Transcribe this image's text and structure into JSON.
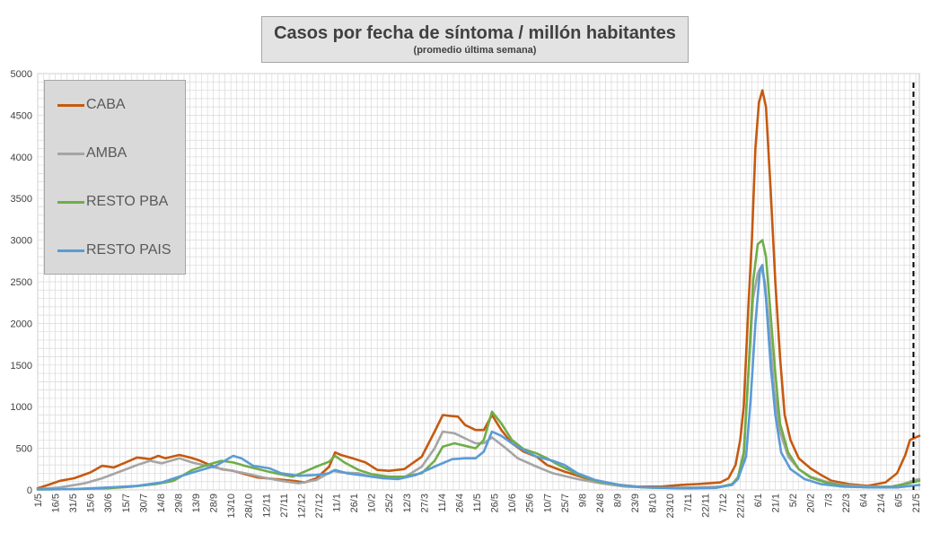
{
  "chart_data": {
    "type": "line",
    "title": "Casos por fecha de síntoma / millón habitantes",
    "subtitle": "(promedio última semana)",
    "xlabel": "",
    "ylabel": "",
    "ylim": [
      0,
      5000
    ],
    "yticks": [
      0,
      500,
      1000,
      1500,
      2000,
      2500,
      3000,
      3500,
      4000,
      4500,
      5000
    ],
    "x_start": "2020-05-01",
    "x_end": "2022-05-24",
    "xtick_labels": [
      "1/5",
      "16/5",
      "31/5",
      "15/6",
      "30/6",
      "15/7",
      "30/7",
      "14/8",
      "29/8",
      "13/9",
      "28/9",
      "13/10",
      "28/10",
      "12/11",
      "27/11",
      "12/12",
      "27/12",
      "11/1",
      "26/1",
      "10/2",
      "25/2",
      "12/3",
      "27/3",
      "11/4",
      "26/4",
      "11/5",
      "26/5",
      "10/6",
      "25/6",
      "10/7",
      "25/7",
      "9/8",
      "24/8",
      "8/9",
      "23/9",
      "8/10",
      "23/10",
      "7/11",
      "22/11",
      "7/12",
      "22/12",
      "6/1",
      "21/1",
      "5/2",
      "20/2",
      "7/3",
      "22/3",
      "6/4",
      "21/4",
      "6/5",
      "21/5"
    ],
    "grid": true,
    "legend_position": "top-left",
    "marker_line_date": "2022-05-19",
    "series": [
      {
        "name": "CABA",
        "color": "#c55a11",
        "points": [
          [
            "2020-05-01",
            20
          ],
          [
            "2020-05-10",
            60
          ],
          [
            "2020-05-20",
            110
          ],
          [
            "2020-06-01",
            140
          ],
          [
            "2020-06-15",
            210
          ],
          [
            "2020-06-25",
            290
          ],
          [
            "2020-07-05",
            270
          ],
          [
            "2020-07-15",
            330
          ],
          [
            "2020-07-25",
            390
          ],
          [
            "2020-08-05",
            370
          ],
          [
            "2020-08-12",
            410
          ],
          [
            "2020-08-18",
            380
          ],
          [
            "2020-08-30",
            420
          ],
          [
            "2020-09-08",
            390
          ],
          [
            "2020-09-15",
            360
          ],
          [
            "2020-09-25",
            300
          ],
          [
            "2020-10-05",
            250
          ],
          [
            "2020-10-15",
            230
          ],
          [
            "2020-10-25",
            190
          ],
          [
            "2020-11-05",
            150
          ],
          [
            "2020-11-20",
            130
          ],
          [
            "2020-12-05",
            110
          ],
          [
            "2020-12-15",
            90
          ],
          [
            "2020-12-25",
            140
          ],
          [
            "2021-01-05",
            280
          ],
          [
            "2021-01-10",
            450
          ],
          [
            "2021-01-15",
            420
          ],
          [
            "2021-01-25",
            380
          ],
          [
            "2021-02-05",
            330
          ],
          [
            "2021-02-15",
            240
          ],
          [
            "2021-02-25",
            230
          ],
          [
            "2021-03-10",
            250
          ],
          [
            "2021-03-25",
            400
          ],
          [
            "2021-04-05",
            700
          ],
          [
            "2021-04-12",
            900
          ],
          [
            "2021-04-18",
            890
          ],
          [
            "2021-04-25",
            880
          ],
          [
            "2021-05-01",
            780
          ],
          [
            "2021-05-10",
            720
          ],
          [
            "2021-05-17",
            720
          ],
          [
            "2021-05-24",
            900
          ],
          [
            "2021-06-01",
            720
          ],
          [
            "2021-06-10",
            560
          ],
          [
            "2021-06-20",
            460
          ],
          [
            "2021-07-01",
            400
          ],
          [
            "2021-07-10",
            300
          ],
          [
            "2021-07-25",
            220
          ],
          [
            "2021-08-10",
            150
          ],
          [
            "2021-08-25",
            90
          ],
          [
            "2021-09-10",
            60
          ],
          [
            "2021-09-25",
            40
          ],
          [
            "2021-10-15",
            40
          ],
          [
            "2021-11-01",
            60
          ],
          [
            "2021-11-15",
            70
          ],
          [
            "2021-11-25",
            80
          ],
          [
            "2021-12-05",
            90
          ],
          [
            "2021-12-12",
            140
          ],
          [
            "2021-12-18",
            300
          ],
          [
            "2021-12-22",
            600
          ],
          [
            "2021-12-25",
            1000
          ],
          [
            "2021-12-29",
            2200
          ],
          [
            "2022-01-01",
            3000
          ],
          [
            "2022-01-04",
            4100
          ],
          [
            "2022-01-07",
            4650
          ],
          [
            "2022-01-10",
            4800
          ],
          [
            "2022-01-13",
            4600
          ],
          [
            "2022-01-17",
            3600
          ],
          [
            "2022-01-21",
            2500
          ],
          [
            "2022-01-25",
            1600
          ],
          [
            "2022-01-29",
            900
          ],
          [
            "2022-02-03",
            600
          ],
          [
            "2022-02-10",
            380
          ],
          [
            "2022-02-20",
            260
          ],
          [
            "2022-03-01",
            180
          ],
          [
            "2022-03-10",
            110
          ],
          [
            "2022-03-25",
            70
          ],
          [
            "2022-04-10",
            50
          ],
          [
            "2022-04-25",
            90
          ],
          [
            "2022-05-05",
            200
          ],
          [
            "2022-05-12",
            420
          ],
          [
            "2022-05-16",
            600
          ],
          [
            "2022-05-24",
            650
          ]
        ]
      },
      {
        "name": "AMBA",
        "color": "#a5a5a5",
        "points": [
          [
            "2020-05-01",
            10
          ],
          [
            "2020-05-20",
            30
          ],
          [
            "2020-06-10",
            80
          ],
          [
            "2020-06-25",
            140
          ],
          [
            "2020-07-10",
            220
          ],
          [
            "2020-07-25",
            300
          ],
          [
            "2020-08-05",
            350
          ],
          [
            "2020-08-15",
            320
          ],
          [
            "2020-08-30",
            380
          ],
          [
            "2020-09-10",
            330
          ],
          [
            "2020-09-25",
            280
          ],
          [
            "2020-10-10",
            240
          ],
          [
            "2020-10-25",
            200
          ],
          [
            "2020-11-10",
            150
          ],
          [
            "2020-11-25",
            110
          ],
          [
            "2020-12-10",
            80
          ],
          [
            "2020-12-25",
            120
          ],
          [
            "2021-01-08",
            230
          ],
          [
            "2021-01-15",
            210
          ],
          [
            "2021-01-30",
            200
          ],
          [
            "2021-02-10",
            160
          ],
          [
            "2021-02-25",
            140
          ],
          [
            "2021-03-10",
            150
          ],
          [
            "2021-03-25",
            280
          ],
          [
            "2021-04-05",
            500
          ],
          [
            "2021-04-12",
            700
          ],
          [
            "2021-04-22",
            680
          ],
          [
            "2021-05-01",
            620
          ],
          [
            "2021-05-10",
            560
          ],
          [
            "2021-05-17",
            560
          ],
          [
            "2021-05-24",
            630
          ],
          [
            "2021-06-05",
            500
          ],
          [
            "2021-06-15",
            380
          ],
          [
            "2021-07-01",
            280
          ],
          [
            "2021-07-15",
            200
          ],
          [
            "2021-08-05",
            130
          ],
          [
            "2021-08-25",
            80
          ],
          [
            "2021-09-15",
            40
          ],
          [
            "2021-10-15",
            25
          ],
          [
            "2021-11-15",
            30
          ],
          [
            "2021-12-05",
            40
          ],
          [
            "2021-12-15",
            60
          ],
          [
            "2021-12-20",
            150
          ],
          [
            "2021-12-25",
            400
          ],
          [
            "2021-12-29",
            1400
          ],
          [
            "2022-01-02",
            2300
          ],
          [
            "2022-01-06",
            2600
          ],
          [
            "2022-01-09",
            2680
          ],
          [
            "2022-01-12",
            2500
          ],
          [
            "2022-01-16",
            1900
          ],
          [
            "2022-01-20",
            1200
          ],
          [
            "2022-01-25",
            700
          ],
          [
            "2022-02-01",
            400
          ],
          [
            "2022-02-10",
            250
          ],
          [
            "2022-02-20",
            160
          ],
          [
            "2022-03-05",
            100
          ],
          [
            "2022-03-20",
            60
          ],
          [
            "2022-04-10",
            40
          ],
          [
            "2022-04-30",
            40
          ],
          [
            "2022-05-10",
            70
          ],
          [
            "2022-05-18",
            110
          ],
          [
            "2022-05-24",
            130
          ]
        ]
      },
      {
        "name": "RESTO PBA",
        "color": "#70ad47",
        "points": [
          [
            "2020-05-01",
            5
          ],
          [
            "2020-06-01",
            10
          ],
          [
            "2020-07-01",
            20
          ],
          [
            "2020-07-20",
            40
          ],
          [
            "2020-08-10",
            70
          ],
          [
            "2020-08-25",
            110
          ],
          [
            "2020-09-10",
            240
          ],
          [
            "2020-09-25",
            310
          ],
          [
            "2020-10-05",
            350
          ],
          [
            "2020-10-15",
            330
          ],
          [
            "2020-10-25",
            290
          ],
          [
            "2020-11-05",
            250
          ],
          [
            "2020-11-20",
            200
          ],
          [
            "2020-12-05",
            160
          ],
          [
            "2020-12-15",
            220
          ],
          [
            "2020-12-25",
            280
          ],
          [
            "2021-01-05",
            340
          ],
          [
            "2021-01-10",
            410
          ],
          [
            "2021-01-18",
            330
          ],
          [
            "2021-01-30",
            240
          ],
          [
            "2021-02-10",
            190
          ],
          [
            "2021-02-25",
            160
          ],
          [
            "2021-03-10",
            160
          ],
          [
            "2021-03-25",
            200
          ],
          [
            "2021-04-05",
            350
          ],
          [
            "2021-04-12",
            520
          ],
          [
            "2021-04-22",
            560
          ],
          [
            "2021-05-01",
            530
          ],
          [
            "2021-05-10",
            500
          ],
          [
            "2021-05-17",
            600
          ],
          [
            "2021-05-24",
            940
          ],
          [
            "2021-06-01",
            800
          ],
          [
            "2021-06-10",
            600
          ],
          [
            "2021-06-20",
            490
          ],
          [
            "2021-07-01",
            440
          ],
          [
            "2021-07-10",
            380
          ],
          [
            "2021-07-20",
            300
          ],
          [
            "2021-08-05",
            190
          ],
          [
            "2021-08-20",
            110
          ],
          [
            "2021-09-10",
            60
          ],
          [
            "2021-10-01",
            30
          ],
          [
            "2021-11-01",
            20
          ],
          [
            "2021-12-01",
            25
          ],
          [
            "2021-12-15",
            70
          ],
          [
            "2021-12-20",
            150
          ],
          [
            "2021-12-25",
            450
          ],
          [
            "2021-12-29",
            1400
          ],
          [
            "2022-01-02",
            2500
          ],
          [
            "2022-01-06",
            2950
          ],
          [
            "2022-01-10",
            3000
          ],
          [
            "2022-01-13",
            2800
          ],
          [
            "2022-01-17",
            2100
          ],
          [
            "2022-01-21",
            1400
          ],
          [
            "2022-01-25",
            800
          ],
          [
            "2022-02-01",
            450
          ],
          [
            "2022-02-10",
            250
          ],
          [
            "2022-02-20",
            150
          ],
          [
            "2022-03-05",
            90
          ],
          [
            "2022-03-20",
            50
          ],
          [
            "2022-04-10",
            30
          ],
          [
            "2022-05-01",
            40
          ],
          [
            "2022-05-15",
            80
          ],
          [
            "2022-05-24",
            110
          ]
        ]
      },
      {
        "name": "RESTO PAIS",
        "color": "#5b9bd5",
        "points": [
          [
            "2020-05-01",
            5
          ],
          [
            "2020-06-01",
            10
          ],
          [
            "2020-07-01",
            30
          ],
          [
            "2020-07-25",
            50
          ],
          [
            "2020-08-15",
            90
          ],
          [
            "2020-09-01",
            170
          ],
          [
            "2020-09-15",
            230
          ],
          [
            "2020-09-30",
            290
          ],
          [
            "2020-10-10",
            370
          ],
          [
            "2020-10-15",
            410
          ],
          [
            "2020-10-22",
            380
          ],
          [
            "2020-11-01",
            290
          ],
          [
            "2020-11-15",
            260
          ],
          [
            "2020-11-25",
            200
          ],
          [
            "2020-12-10",
            170
          ],
          [
            "2020-12-25",
            180
          ],
          [
            "2021-01-05",
            200
          ],
          [
            "2021-01-10",
            240
          ],
          [
            "2021-01-20",
            200
          ],
          [
            "2021-02-05",
            170
          ],
          [
            "2021-02-20",
            140
          ],
          [
            "2021-03-05",
            130
          ],
          [
            "2021-03-20",
            180
          ],
          [
            "2021-04-05",
            280
          ],
          [
            "2021-04-20",
            370
          ],
          [
            "2021-05-01",
            380
          ],
          [
            "2021-05-10",
            380
          ],
          [
            "2021-05-17",
            460
          ],
          [
            "2021-05-24",
            700
          ],
          [
            "2021-06-01",
            650
          ],
          [
            "2021-06-10",
            560
          ],
          [
            "2021-06-20",
            480
          ],
          [
            "2021-07-01",
            400
          ],
          [
            "2021-07-15",
            350
          ],
          [
            "2021-07-25",
            300
          ],
          [
            "2021-08-05",
            200
          ],
          [
            "2021-08-20",
            120
          ],
          [
            "2021-09-10",
            60
          ],
          [
            "2021-10-01",
            30
          ],
          [
            "2021-11-01",
            20
          ],
          [
            "2021-12-01",
            25
          ],
          [
            "2021-12-15",
            60
          ],
          [
            "2021-12-20",
            130
          ],
          [
            "2021-12-27",
            400
          ],
          [
            "2021-12-31",
            1100
          ],
          [
            "2022-01-04",
            2000
          ],
          [
            "2022-01-08",
            2650
          ],
          [
            "2022-01-10",
            2700
          ],
          [
            "2022-01-13",
            2300
          ],
          [
            "2022-01-17",
            1500
          ],
          [
            "2022-01-21",
            900
          ],
          [
            "2022-01-26",
            450
          ],
          [
            "2022-02-03",
            250
          ],
          [
            "2022-02-15",
            130
          ],
          [
            "2022-03-01",
            70
          ],
          [
            "2022-03-20",
            40
          ],
          [
            "2022-04-15",
            30
          ],
          [
            "2022-05-05",
            30
          ],
          [
            "2022-05-24",
            60
          ]
        ]
      }
    ]
  }
}
